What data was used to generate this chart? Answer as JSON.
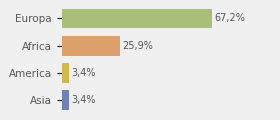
{
  "categories": [
    "Asia",
    "America",
    "Africa",
    "Europa"
  ],
  "values": [
    3.4,
    3.4,
    25.9,
    67.2
  ],
  "labels": [
    "3,4%",
    "3,4%",
    "25,9%",
    "67,2%"
  ],
  "bar_colors": [
    "#7080bb",
    "#d4b84a",
    "#dda06a",
    "#a8bf78"
  ],
  "background_color": "#f0f0f0",
  "xlim": [
    0,
    95
  ],
  "bar_height": 0.72,
  "label_fontsize": 7,
  "tick_fontsize": 7.5
}
